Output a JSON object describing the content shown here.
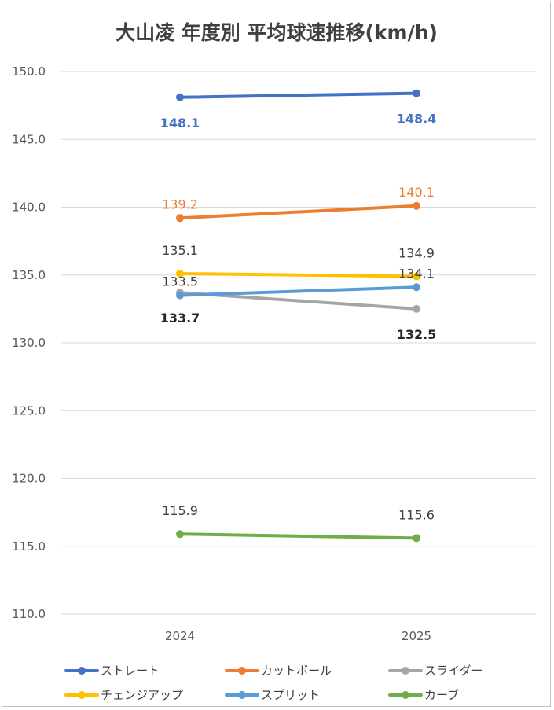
{
  "chart_data": {
    "type": "line",
    "title": "大山凌 年度別 平均球速推移(km/h)",
    "xlabel": "",
    "ylabel": "",
    "categories": [
      "2024",
      "2025"
    ],
    "ylim": [
      110.0,
      150.0
    ],
    "ytick_step": 5,
    "ytick_labels": [
      "110.0",
      "115.0",
      "120.0",
      "125.0",
      "130.0",
      "135.0",
      "140.0",
      "145.0",
      "150.0"
    ],
    "grid": true,
    "legend_position": "bottom",
    "series": [
      {
        "name": "ストレート",
        "values": [
          148.1,
          148.4
        ],
        "labels": [
          "148.1",
          "148.4"
        ],
        "color": "#4472C4",
        "label_color": "#4472C4",
        "label_bold": true,
        "label_position": "below"
      },
      {
        "name": "カットボール",
        "values": [
          139.2,
          140.1
        ],
        "labels": [
          "139.2",
          "140.1"
        ],
        "color": "#ED7D31",
        "label_color": "#ED7D31",
        "label_bold": false,
        "label_position": "above"
      },
      {
        "name": "スライダー",
        "values": [
          133.7,
          132.5
        ],
        "labels": [
          "133.7",
          "132.5"
        ],
        "color": "#A5A5A5",
        "label_color": "#262626",
        "label_bold": true,
        "label_position": "below"
      },
      {
        "name": "チェンジアップ",
        "values": [
          135.1,
          134.9
        ],
        "labels": [
          "135.1",
          "134.9"
        ],
        "color": "#FFC000",
        "label_color": "#404040",
        "label_bold": false,
        "label_position": "above_far"
      },
      {
        "name": "スプリット",
        "values": [
          133.5,
          134.1
        ],
        "labels": [
          "133.5",
          "134.1"
        ],
        "color": "#5B9BD5",
        "label_color": "#404040",
        "label_bold": false,
        "label_position": "above"
      },
      {
        "name": "カーブ",
        "values": [
          115.9,
          115.6
        ],
        "labels": [
          "115.9",
          "115.6"
        ],
        "color": "#70AD47",
        "label_color": "#404040",
        "label_bold": false,
        "label_position": "above_far"
      }
    ]
  }
}
